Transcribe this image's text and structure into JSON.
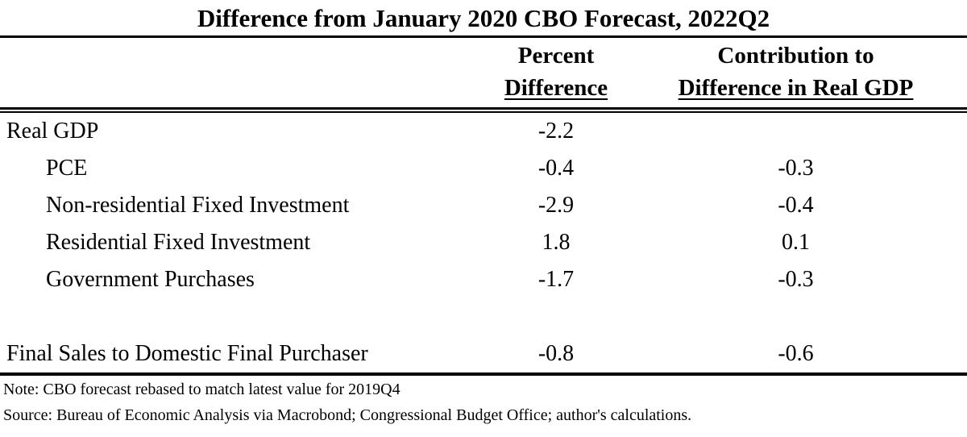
{
  "table": {
    "title": "Difference from January 2020 CBO Forecast, 2022Q2",
    "header": {
      "percent_line1": "Percent",
      "percent_line2": "Difference",
      "contrib_line1": "Contribution to",
      "contrib_line2": "Difference in Real GDP"
    },
    "rows": [
      {
        "label": "Real GDP",
        "indent": false,
        "percent_difference": "-2.2",
        "contribution": ""
      },
      {
        "label": "PCE",
        "indent": true,
        "percent_difference": "-0.4",
        "contribution": "-0.3"
      },
      {
        "label": "Non-residential Fixed Investment",
        "indent": true,
        "percent_difference": "-2.9",
        "contribution": "-0.4"
      },
      {
        "label": "Residential Fixed Investment",
        "indent": true,
        "percent_difference": "1.8",
        "contribution": "0.1"
      },
      {
        "label": "Government Purchases",
        "indent": true,
        "percent_difference": "-1.7",
        "contribution": "-0.3"
      },
      {
        "label": "",
        "indent": false,
        "percent_difference": "",
        "contribution": ""
      },
      {
        "label": "Final Sales to Domestic Final Purchaser",
        "indent": false,
        "percent_difference": "-0.8",
        "contribution": "-0.6"
      }
    ],
    "note": "Note: CBO forecast rebased to match latest value for 2019Q4",
    "source": "Source: Bureau of Economic Analysis via Macrobond; Congressional Budget Office; author's calculations."
  },
  "colors": {
    "text": "#000000",
    "background": "#ffffff",
    "rule": "#000000"
  },
  "chart_data": {
    "type": "table",
    "title": "Difference from January 2020 CBO Forecast, 2022Q2",
    "columns": [
      "",
      "Percent Difference",
      "Contribution to Difference in Real GDP"
    ],
    "rows": [
      [
        "Real GDP",
        -2.2,
        null
      ],
      [
        "PCE",
        -0.4,
        -0.3
      ],
      [
        "Non-residential Fixed Investment",
        -2.9,
        -0.4
      ],
      [
        "Residential Fixed Investment",
        1.8,
        0.1
      ],
      [
        "Government Purchases",
        -1.7,
        -0.3
      ],
      [
        "Final Sales to Domestic Final Purchaser",
        -0.8,
        -0.6
      ]
    ],
    "note": "Note: CBO forecast rebased to match latest value for 2019Q4",
    "source": "Source: Bureau of Economic Analysis via Macrobond; Congressional Budget Office; author's calculations."
  }
}
